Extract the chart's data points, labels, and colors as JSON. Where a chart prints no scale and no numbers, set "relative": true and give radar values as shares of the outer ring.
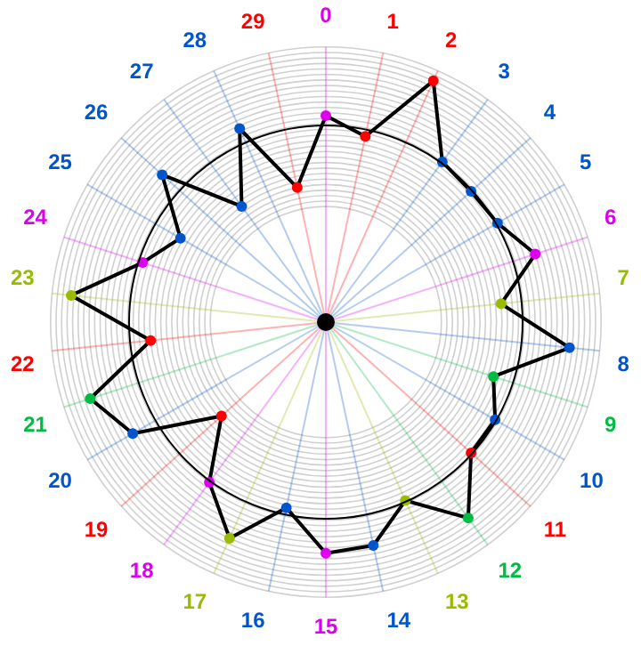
{
  "chart_data": {
    "type": "radar",
    "relative": true,
    "categories": [
      "0",
      "1",
      "2",
      "3",
      "4",
      "5",
      "6",
      "7",
      "8",
      "9",
      "10",
      "11",
      "12",
      "13",
      "14",
      "15",
      "16",
      "17",
      "18",
      "19",
      "20",
      "21",
      "22",
      "23",
      "24",
      "25",
      "26",
      "27",
      "28",
      "29"
    ],
    "series": [
      {
        "color": "#000000",
        "colors": [
          "#dd00ee",
          "#ff0000",
          "#ff0000",
          "#0055cc",
          "#0055cc",
          "#0055cc",
          "#dd00ee",
          "#99bb00",
          "#0055cc",
          "#00bb44",
          "#0055cc",
          "#ff0000",
          "#00bb44",
          "#99bb00",
          "#0055cc",
          "#dd00ee",
          "#0055cc",
          "#99bb00",
          "#dd00ee",
          "#ff0000",
          "#0055cc",
          "#00bb44",
          "#ff0000",
          "#99bb00",
          "#dd00ee",
          "#0055cc",
          "#0055cc",
          "#0055cc",
          "#0055cc",
          "#ff0000"
        ],
        "values": [
          0.75,
          0.69,
          0.96,
          0.72,
          0.71,
          0.72,
          0.8,
          0.64,
          0.89,
          0.64,
          0.71,
          0.71,
          0.88,
          0.71,
          0.83,
          0.84,
          0.69,
          0.86,
          0.72,
          0.51,
          0.81,
          0.9,
          0.64,
          0.93,
          0.7,
          0.61,
          0.8,
          0.52,
          0.77,
          0.5
        ]
      }
    ],
    "grid": true,
    "legend": false,
    "marker": "circle",
    "line_style": "solid"
  }
}
